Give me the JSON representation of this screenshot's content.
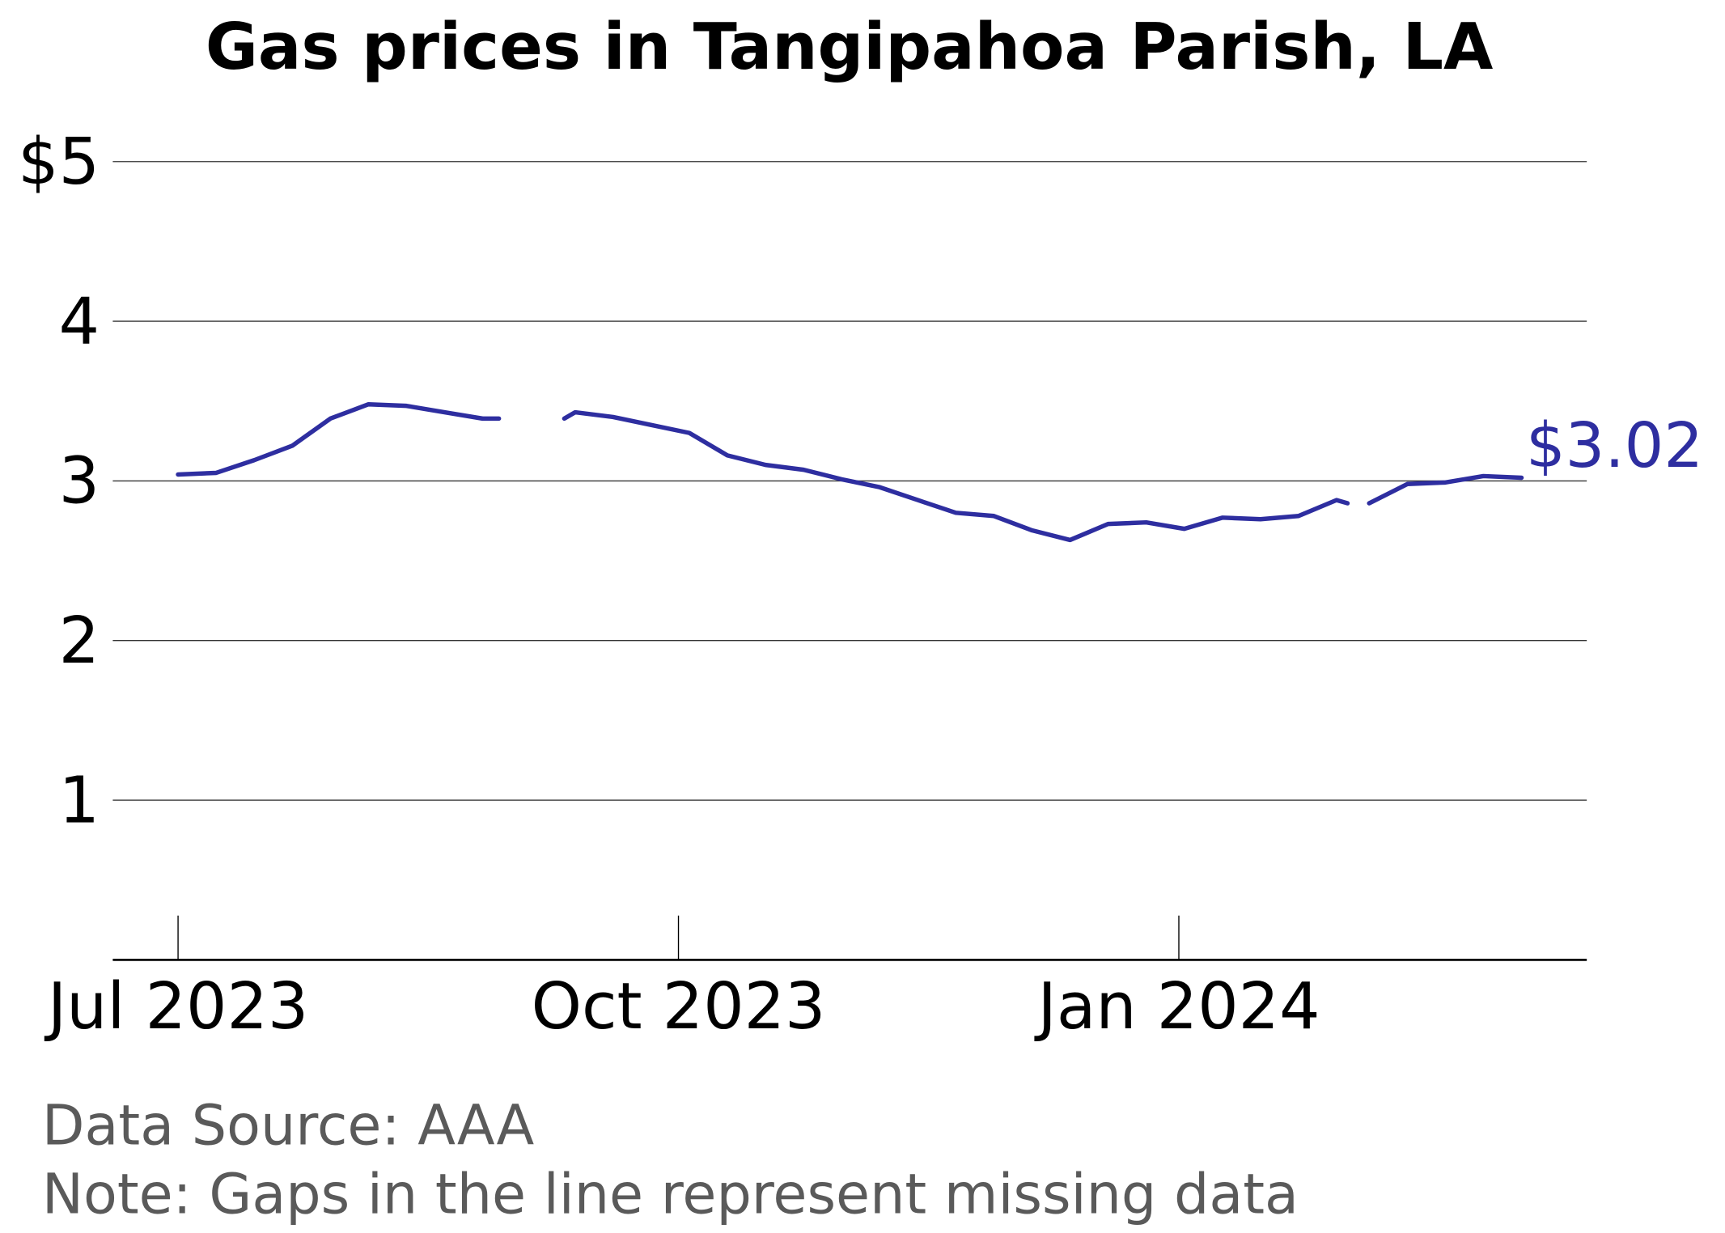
{
  "chart_data": {
    "type": "line",
    "title": "Gas prices in Tangipahoa Parish, LA",
    "notes": [
      "Data Source: AAA",
      "Note: Gaps in the line represent missing data"
    ],
    "x": [
      "2023-07-01",
      "2023-07-08",
      "2023-07-15",
      "2023-07-22",
      "2023-07-29",
      "2023-08-05",
      "2023-08-12",
      "2023-08-19",
      "2023-08-26",
      "2023-08-29",
      "2023-09-05",
      "2023-09-10",
      "2023-09-12",
      "2023-09-19",
      "2023-09-26",
      "2023-10-03",
      "2023-10-10",
      "2023-10-17",
      "2023-10-24",
      "2023-10-31",
      "2023-11-07",
      "2023-11-14",
      "2023-11-21",
      "2023-11-28",
      "2023-12-05",
      "2023-12-12",
      "2023-12-19",
      "2023-12-26",
      "2024-01-02",
      "2024-01-09",
      "2024-01-16",
      "2024-01-23",
      "2024-01-30",
      "2024-02-01",
      "2024-02-03",
      "2024-02-05",
      "2024-02-12",
      "2024-02-19",
      "2024-02-26",
      "2024-03-04"
    ],
    "series": [
      {
        "name": "Gas price",
        "color": "#2e2ea0",
        "values": [
          3.04,
          3.05,
          3.13,
          3.22,
          3.39,
          3.48,
          3.47,
          3.43,
          3.39,
          3.39,
          null,
          3.39,
          3.43,
          3.4,
          3.35,
          3.3,
          3.16,
          3.1,
          3.07,
          3.01,
          2.96,
          2.88,
          2.8,
          2.78,
          2.69,
          2.63,
          2.73,
          2.74,
          2.7,
          2.77,
          2.76,
          2.78,
          2.88,
          2.86,
          null,
          2.86,
          2.98,
          2.99,
          3.03,
          3.02
        ],
        "value_labels": [
          null,
          null,
          null,
          null,
          null,
          null,
          null,
          null,
          null,
          null,
          null,
          null,
          null,
          null,
          null,
          null,
          null,
          null,
          null,
          null,
          null,
          null,
          null,
          null,
          null,
          null,
          null,
          null,
          null,
          null,
          null,
          null,
          null,
          null,
          null,
          null,
          null,
          null,
          null,
          "$3.02"
        ]
      }
    ],
    "xlim": [
      "2023-06-19",
      "2024-03-16"
    ],
    "xticks": [
      {
        "value": "2023-07-01",
        "label": "Jul 2023"
      },
      {
        "value": "2023-10-01",
        "label": "Oct 2023"
      },
      {
        "value": "2024-01-01",
        "label": "Jan 2024"
      }
    ],
    "ylim": [
      0,
      5.25
    ],
    "yticks": [
      1,
      2,
      3,
      4,
      {
        "value": 5,
        "label": "$5"
      }
    ],
    "grid": true
  }
}
